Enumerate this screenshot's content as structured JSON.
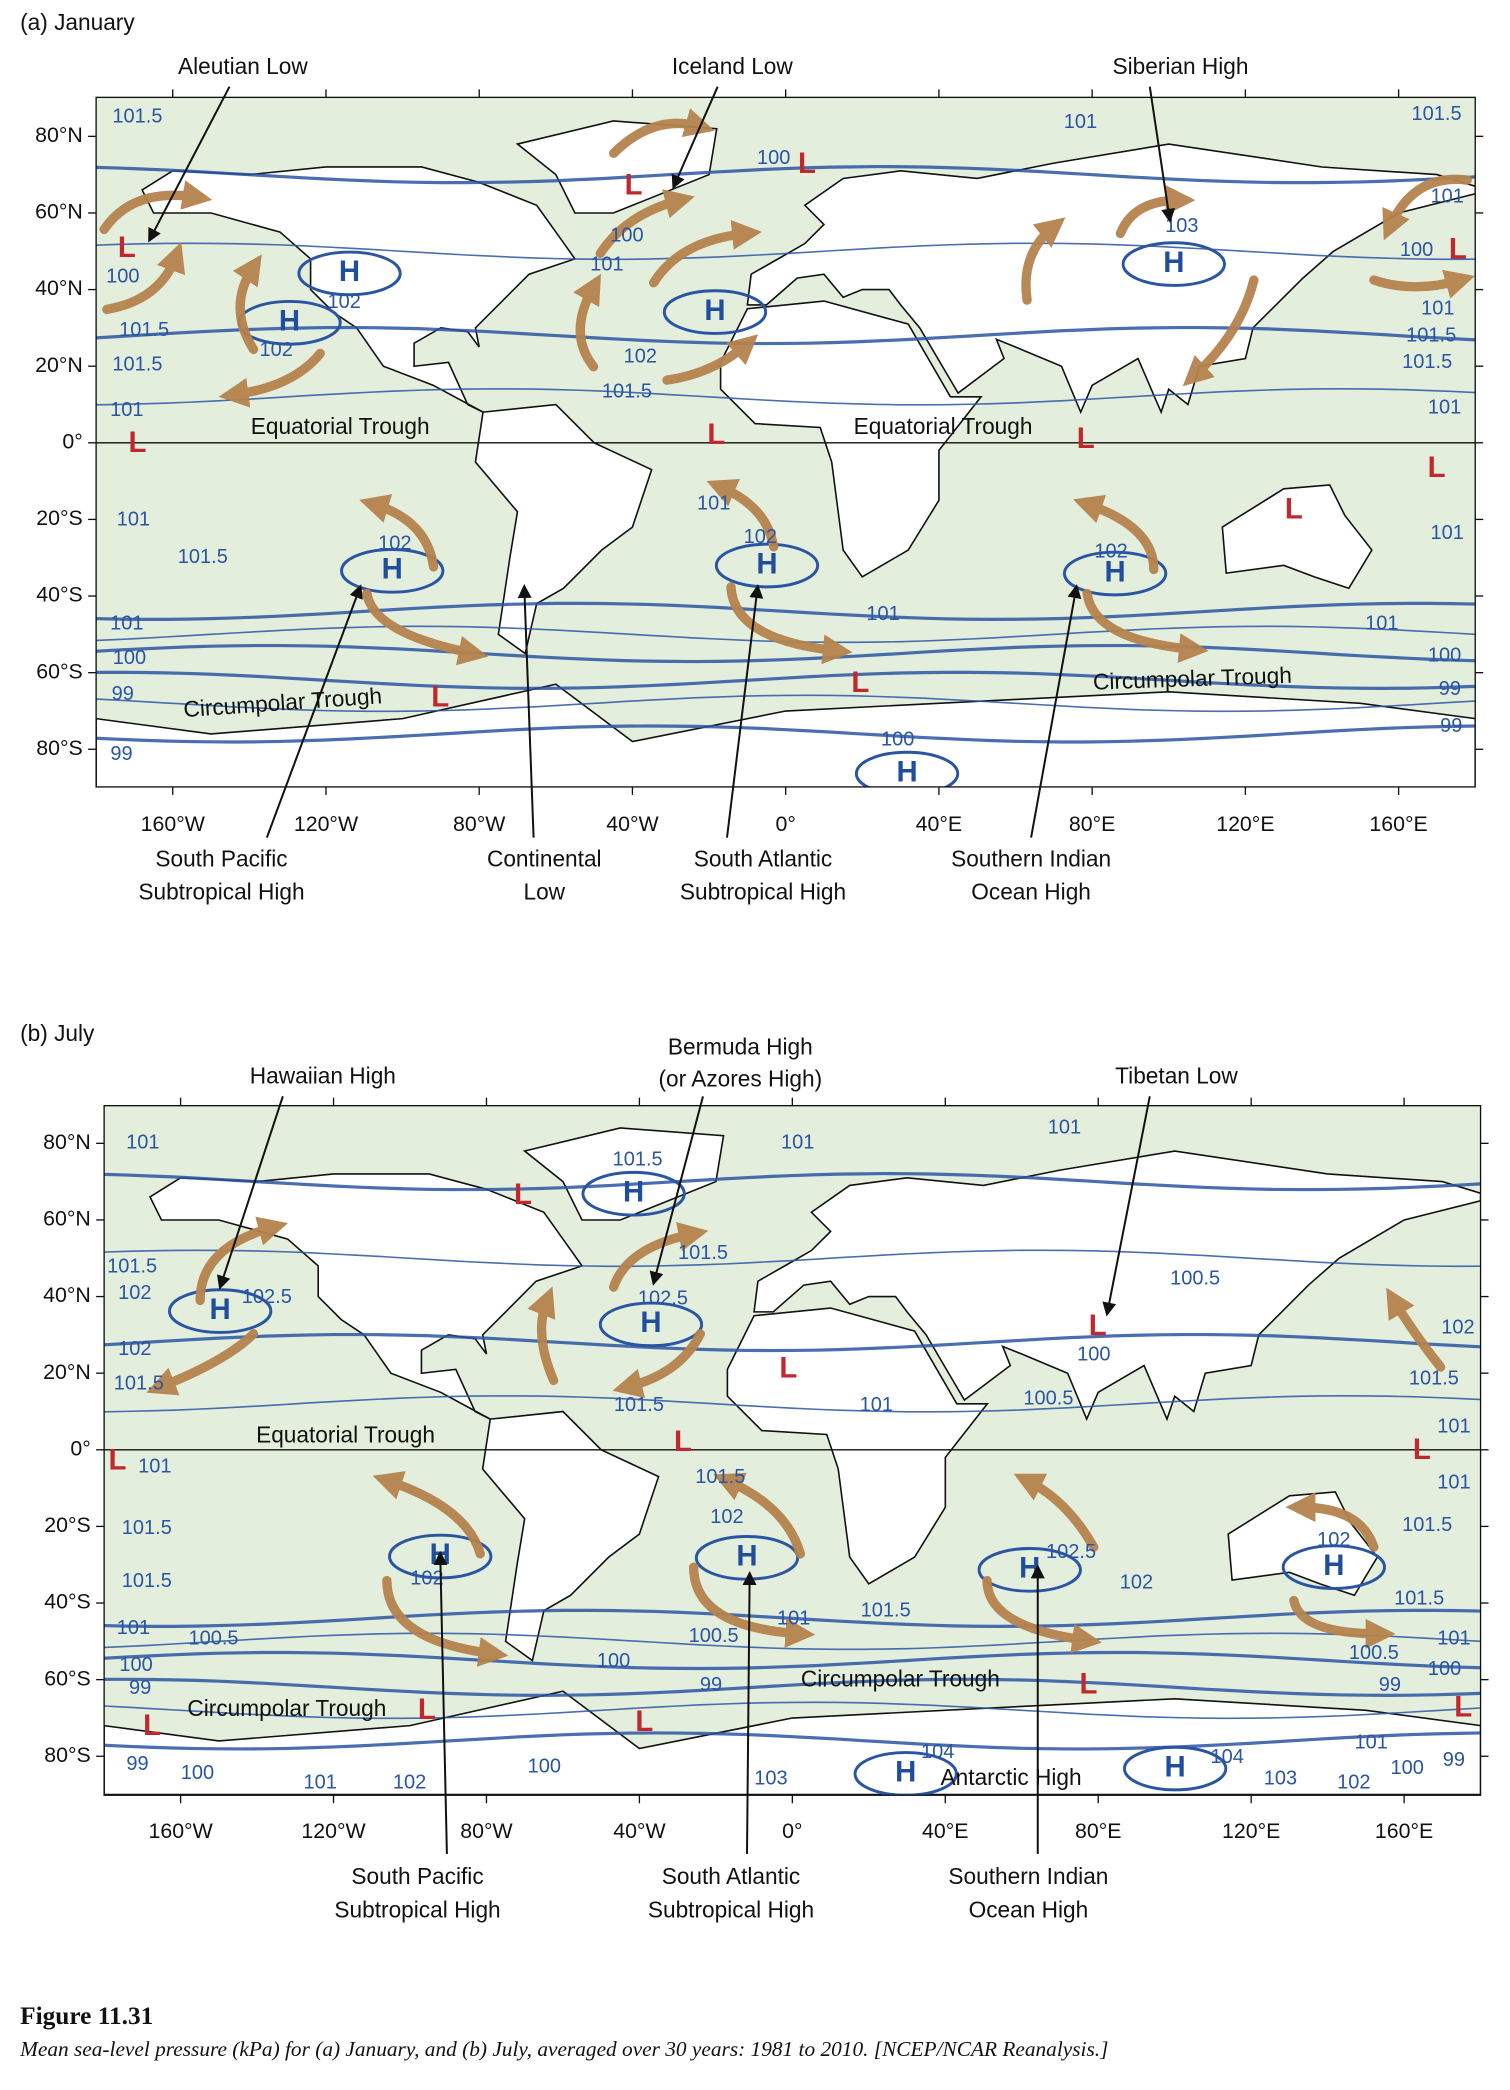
{
  "panels": [
    {
      "title": "(a) January",
      "callouts": [
        {
          "lines": [
            "Aleutian Low"
          ]
        },
        {
          "lines": [
            "Iceland Low"
          ]
        },
        {
          "lines": [
            "Siberian High"
          ]
        },
        {
          "lines": [
            "South Pacific",
            "Subtropical High"
          ]
        },
        {
          "lines": [
            "Continental",
            "Low"
          ]
        },
        {
          "lines": [
            "South Atlantic",
            "Subtropical High"
          ]
        },
        {
          "lines": [
            "Southern Indian",
            "Ocean High"
          ]
        }
      ],
      "lat_labels": [
        "80°N",
        "60°N",
        "40°N",
        "20°N",
        "0°",
        "20°S",
        "40°S",
        "60°S",
        "80°S"
      ],
      "lon_labels": [
        "160°W",
        "120°W",
        "80°W",
        "40°W",
        "0°",
        "40°E",
        "80°E",
        "120°E",
        "160°E"
      ],
      "features": [
        "Equatorial Trough",
        "Equatorial Trough",
        "Circumpolar  Trough",
        "Circumpolar Trough"
      ],
      "pressure_centers": [
        "L",
        "H",
        "H",
        "L",
        "L",
        "H",
        "H",
        "L",
        "L",
        "L",
        "L",
        "L",
        "L",
        "H",
        "H",
        "H",
        "L",
        "L",
        "H"
      ],
      "isobar_labels": [
        "101.5",
        "101",
        "101.5",
        "100",
        "103",
        "101",
        "100",
        "101.5",
        "101.5",
        "102",
        "102",
        "101",
        "100",
        "102",
        "101.5",
        "100",
        "101",
        "101.5",
        "101.5",
        "101",
        "101",
        "101",
        "101.5",
        "102",
        "102",
        "101",
        "102",
        "101",
        "101",
        "100",
        "99",
        "101",
        "101",
        "100",
        "99",
        "100",
        "99",
        "99"
      ]
    },
    {
      "title": "(b) July",
      "callouts": [
        {
          "lines": [
            "Hawaiian High"
          ]
        },
        {
          "lines": [
            "Bermuda High",
            "(or Azores High)"
          ]
        },
        {
          "lines": [
            "Tibetan Low"
          ]
        },
        {
          "lines": [
            "South Pacific",
            "Subtropical High"
          ]
        },
        {
          "lines": [
            "South Atlantic",
            "Subtropical High"
          ]
        },
        {
          "lines": [
            "Southern Indian",
            "Ocean High"
          ]
        }
      ],
      "lat_labels": [
        "80°N",
        "60°N",
        "40°N",
        "20°N",
        "0°",
        "20°S",
        "40°S",
        "60°S",
        "80°S"
      ],
      "lon_labels": [
        "160°W",
        "120°W",
        "80°W",
        "40°W",
        "0°",
        "40°E",
        "80°E",
        "120°E",
        "160°E"
      ],
      "features": [
        "Equatorial Trough",
        "Circumpolar Trough",
        "Circumpolar Trough",
        "Antarctic  High"
      ],
      "pressure_centers": [
        "L",
        "H",
        "H",
        "H",
        "L",
        "L",
        "L",
        "L",
        "L",
        "H",
        "H",
        "H",
        "H",
        "L",
        "L",
        "L",
        "L",
        "L",
        "H",
        "H"
      ],
      "isobar_labels": [
        "101",
        "101",
        "101",
        "101.5",
        "101.5",
        "102",
        "102.5",
        "101.5",
        "102.5",
        "100.5",
        "102",
        "100",
        "101.5",
        "100.5",
        "101",
        "101.5",
        "102",
        "101.5",
        "101",
        "101",
        "101.5",
        "101",
        "101.5",
        "102",
        "101.5",
        "102",
        "102.5",
        "102",
        "101.5",
        "102",
        "101.5",
        "101.5",
        "101",
        "100.5",
        "100.5",
        "101",
        "101",
        "100",
        "100.5",
        "100",
        "99",
        "100",
        "99",
        "99",
        "104",
        "104",
        "99",
        "100",
        "101",
        "102",
        "100",
        "103",
        "103",
        "101",
        "100",
        "99",
        "102"
      ]
    }
  ],
  "caption": {
    "label": "Figure 11.31",
    "text": "Mean sea-level pressure (kPa) for (a) January, and (b) July, averaged over 30 years: 1981 to 2010.  [NCEP/NCAR Reanalysis.]"
  }
}
